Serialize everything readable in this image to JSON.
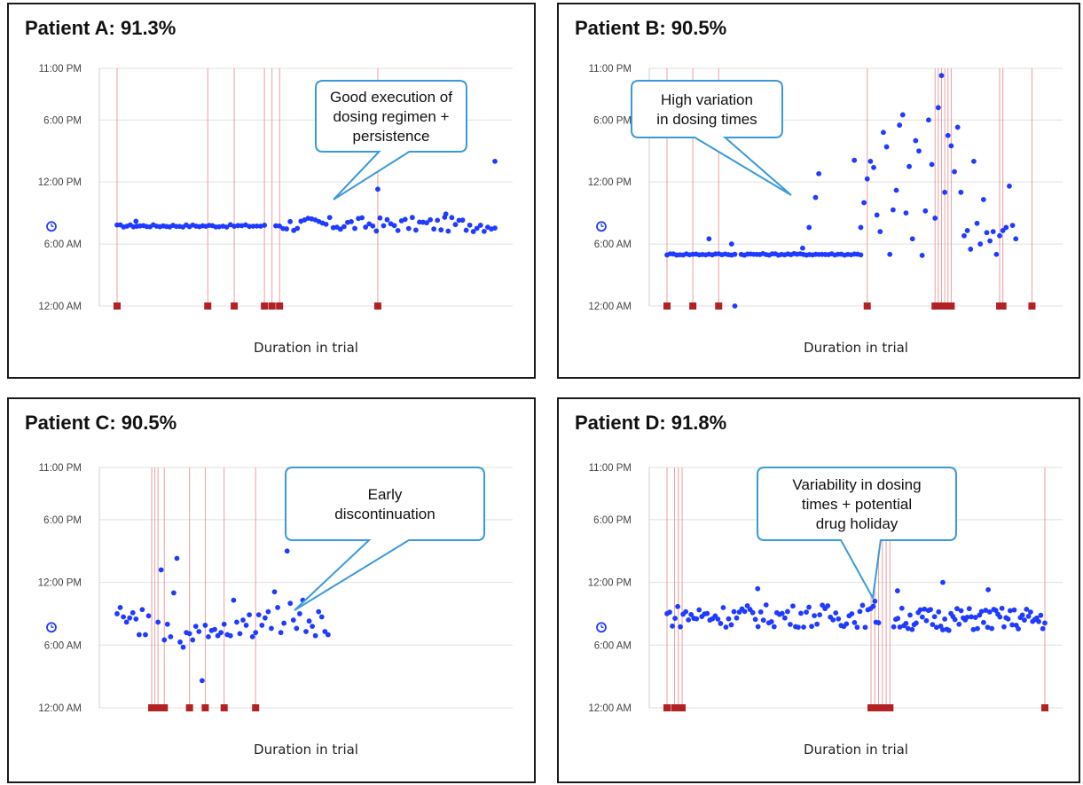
{
  "colors": {
    "dose": "#1f3bff",
    "missed": "#b22222",
    "missed_line": "#e8a0a0",
    "grid": "#e0e0e0",
    "callout": "#3a9ad9"
  },
  "chart_data": [
    {
      "type": "scatter",
      "title": "Patient A:  91.3%",
      "xlabel": "Duration in trial",
      "yticks": [
        "12:00 AM",
        "6:00 AM",
        "12:00 PM",
        "6:00 PM",
        "11:00 PM"
      ],
      "ylim_hours": [
        0,
        23
      ],
      "clock_icon_hour": 7.7,
      "callout": [
        "Good execution of",
        "dosing regimen +",
        "persistence"
      ],
      "doses": {
        "segments": [
          {
            "x0": 0.0,
            "x1": 0.27,
            "n": 32,
            "base": 7.75,
            "amp": 0.12,
            "out": [
              [
                0.05,
                8.2
              ]
            ]
          },
          {
            "x0": 0.28,
            "x1": 0.39,
            "n": 12,
            "base": 7.75,
            "amp": 0.12,
            "out": []
          },
          {
            "x0": 0.42,
            "x1": 1.0,
            "n": 62,
            "base": 7.9,
            "amp": 0.7,
            "out": [
              [
                0.69,
                11.3
              ],
              [
                1.0,
                14.0
              ],
              [
                0.87,
                8.9
              ]
            ]
          }
        ]
      },
      "missed": [
        0.0,
        0.24,
        0.31,
        0.39,
        0.41,
        0.43,
        0.69
      ]
    },
    {
      "type": "scatter",
      "title": "Patient B:  90.5%",
      "xlabel": "Duration in trial",
      "yticks": [
        "12:00 AM",
        "6:00 AM",
        "12:00 PM",
        "6:00 PM",
        "11:00 PM"
      ],
      "ylim_hours": [
        0,
        23
      ],
      "clock_icon_hour": 7.7,
      "callout": [
        "High variation",
        "in dosing times"
      ],
      "doses": {
        "segments": [
          {
            "x0": 0.0,
            "x1": 0.21,
            "n": 22,
            "base": 5.0,
            "amp": 0.08,
            "out": [
              [
                0.13,
                6.5
              ],
              [
                0.2,
                6.0
              ],
              [
                0.21,
                0.0
              ]
            ]
          },
          {
            "x0": 0.23,
            "x1": 0.47,
            "n": 26,
            "base": 5.0,
            "amp": 0.08,
            "out": [
              [
                0.42,
                5.6
              ],
              [
                0.44,
                7.6
              ],
              [
                0.46,
                10.5
              ],
              [
                0.47,
                12.8
              ]
            ]
          },
          {
            "x0": 0.48,
            "x1": 0.6,
            "n": 13,
            "base": 5.0,
            "amp": 0.08,
            "out": [
              [
                0.58,
                14.1
              ],
              [
                0.6,
                7.6
              ]
            ]
          }
        ],
        "scatter": [
          [
            0.61,
            10.0
          ],
          [
            0.62,
            12.3
          ],
          [
            0.63,
            14.0
          ],
          [
            0.64,
            13.4
          ],
          [
            0.65,
            8.8
          ],
          [
            0.66,
            7.2
          ],
          [
            0.67,
            16.8
          ],
          [
            0.68,
            15.4
          ],
          [
            0.69,
            5.0
          ],
          [
            0.7,
            9.3
          ],
          [
            0.71,
            11.2
          ],
          [
            0.72,
            17.5
          ],
          [
            0.73,
            18.5
          ],
          [
            0.74,
            9.0
          ],
          [
            0.75,
            13.5
          ],
          [
            0.76,
            6.5
          ],
          [
            0.77,
            16.0
          ],
          [
            0.78,
            15.0
          ],
          [
            0.79,
            4.9
          ],
          [
            0.8,
            9.2
          ],
          [
            0.81,
            18.0
          ],
          [
            0.82,
            13.7
          ],
          [
            0.83,
            8.5
          ],
          [
            0.84,
            19.2
          ],
          [
            0.85,
            22.3
          ],
          [
            0.86,
            11.0
          ],
          [
            0.87,
            16.5
          ],
          [
            0.88,
            15.5
          ],
          [
            0.89,
            13.0
          ],
          [
            0.9,
            17.3
          ],
          [
            0.91,
            11.0
          ],
          [
            0.92,
            6.8
          ],
          [
            0.93,
            7.3
          ],
          [
            0.94,
            5.5
          ],
          [
            0.95,
            14.0
          ],
          [
            0.96,
            8.0
          ],
          [
            0.97,
            6.0
          ],
          [
            0.98,
            10.3
          ],
          [
            0.99,
            7.1
          ],
          [
            1.0,
            6.3
          ],
          [
            1.01,
            7.2
          ],
          [
            1.02,
            5.0
          ],
          [
            1.03,
            6.8
          ],
          [
            1.04,
            7.3
          ],
          [
            1.05,
            7.6
          ],
          [
            1.06,
            11.6
          ],
          [
            1.07,
            7.8
          ],
          [
            1.08,
            6.5
          ]
        ]
      },
      "missed": [
        0.0,
        0.08,
        0.16,
        0.62,
        0.83,
        0.84,
        0.85,
        0.86,
        0.87,
        0.88,
        1.03,
        1.04,
        1.13
      ]
    },
    {
      "type": "scatter",
      "title": "Patient C:  90.5%",
      "xlabel": "Duration in trial",
      "yticks": [
        "12:00 AM",
        "6:00 AM",
        "12:00 PM",
        "6:00 PM",
        "11:00 PM"
      ],
      "ylim_hours": [
        0,
        23
      ],
      "clock_icon_hour": 7.7,
      "callout": [
        "Early",
        "discontinuation"
      ],
      "doses": {
        "scatter": [
          [
            0.0,
            9.0
          ],
          [
            0.01,
            9.6
          ],
          [
            0.02,
            8.7
          ],
          [
            0.03,
            8.2
          ],
          [
            0.04,
            8.6
          ],
          [
            0.05,
            9.1
          ],
          [
            0.06,
            8.5
          ],
          [
            0.07,
            7.0
          ],
          [
            0.08,
            9.4
          ],
          [
            0.09,
            7.0
          ],
          [
            0.1,
            8.8
          ],
          [
            0.13,
            8.2
          ],
          [
            0.14,
            13.2
          ],
          [
            0.15,
            6.5
          ],
          [
            0.16,
            8.0
          ],
          [
            0.17,
            6.8
          ],
          [
            0.18,
            11.0
          ],
          [
            0.19,
            14.3
          ],
          [
            0.2,
            6.3
          ],
          [
            0.21,
            5.8
          ],
          [
            0.22,
            7.2
          ],
          [
            0.23,
            7.1
          ],
          [
            0.24,
            6.5
          ],
          [
            0.25,
            7.8
          ],
          [
            0.26,
            7.3
          ],
          [
            0.27,
            2.6
          ],
          [
            0.28,
            7.9
          ],
          [
            0.29,
            6.8
          ],
          [
            0.3,
            7.4
          ],
          [
            0.31,
            7.5
          ],
          [
            0.32,
            6.9
          ],
          [
            0.33,
            7.2
          ],
          [
            0.34,
            8.0
          ],
          [
            0.35,
            7.0
          ],
          [
            0.36,
            6.9
          ],
          [
            0.37,
            10.3
          ],
          [
            0.38,
            8.2
          ],
          [
            0.39,
            7.1
          ],
          [
            0.4,
            8.4
          ],
          [
            0.41,
            7.9
          ],
          [
            0.42,
            8.9
          ],
          [
            0.43,
            6.8
          ],
          [
            0.44,
            7.2
          ],
          [
            0.45,
            8.9
          ],
          [
            0.46,
            7.9
          ],
          [
            0.47,
            8.6
          ],
          [
            0.48,
            9.2
          ],
          [
            0.49,
            7.6
          ],
          [
            0.5,
            11.1
          ],
          [
            0.51,
            9.6
          ],
          [
            0.52,
            7.2
          ],
          [
            0.53,
            8.1
          ],
          [
            0.54,
            15.0
          ],
          [
            0.55,
            10.0
          ],
          [
            0.56,
            8.4
          ],
          [
            0.57,
            7.6
          ],
          [
            0.58,
            9.0
          ],
          [
            0.59,
            10.3
          ],
          [
            0.6,
            7.3
          ],
          [
            0.61,
            8.3
          ],
          [
            0.62,
            7.8
          ],
          [
            0.63,
            6.9
          ],
          [
            0.64,
            9.2
          ],
          [
            0.65,
            8.7
          ],
          [
            0.66,
            7.3
          ],
          [
            0.67,
            7.0
          ]
        ]
      },
      "missed": [
        0.11,
        0.12,
        0.13,
        0.15,
        0.23,
        0.28,
        0.34,
        0.44
      ]
    },
    {
      "type": "scatter",
      "title": "Patient D: 91.8%",
      "xlabel": "Duration in trial",
      "yticks": [
        "12:00 AM",
        "6:00 AM",
        "12:00 PM",
        "6:00 PM",
        "11:00 PM"
      ],
      "ylim_hours": [
        0,
        23
      ],
      "clock_icon_hour": 7.7,
      "callout": [
        "Variability in dosing",
        "times + potential",
        "drug holiday"
      ],
      "doses": {
        "segments": [
          {
            "x0": 0.0,
            "x1": 0.56,
            "n": 80,
            "base": 8.8,
            "amp": 1.1,
            "out": [
              [
                0.24,
                11.4
              ],
              [
                0.55,
                10.2
              ]
            ]
          },
          {
            "x0": 0.6,
            "x1": 1.0,
            "n": 75,
            "base": 8.5,
            "amp": 1.1,
            "out": [
              [
                0.73,
                12.0
              ],
              [
                0.85,
                11.3
              ],
              [
                0.61,
                11.2
              ]
            ]
          }
        ]
      },
      "missed": [
        0.0,
        0.02,
        0.03,
        0.04,
        0.54,
        0.55,
        0.56,
        0.57,
        0.58,
        0.59,
        1.0
      ]
    }
  ]
}
